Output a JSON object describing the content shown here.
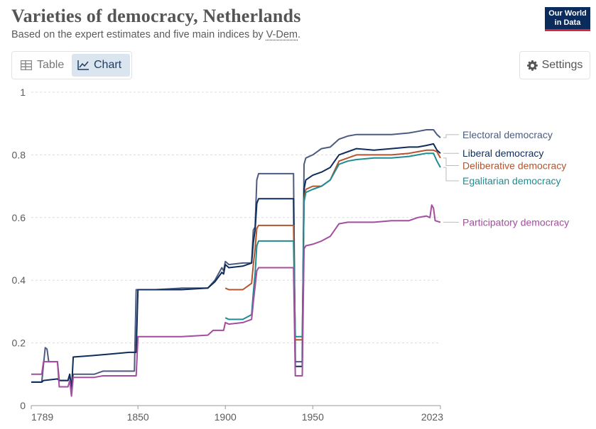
{
  "header": {
    "title": "Varieties of democracy, Netherlands",
    "subtitle_prefix": "Based on the expert estimates and five main indices by ",
    "subtitle_link": "V-Dem",
    "subtitle_suffix": "."
  },
  "logo": {
    "line1": "Our World",
    "line2": "in Data",
    "bg": "#0a2b5c",
    "accent": "#d0283a"
  },
  "tabs": [
    {
      "label": "Table",
      "icon": "table-icon",
      "active": false
    },
    {
      "label": "Chart",
      "icon": "line-chart-icon",
      "active": true
    }
  ],
  "settings": {
    "label": "Settings",
    "icon": "gear-icon"
  },
  "chart_data": {
    "type": "line",
    "title": "Varieties of democracy, Netherlands",
    "xlim": [
      1789,
      2023
    ],
    "ylim": [
      0,
      1
    ],
    "xticks": [
      1789,
      1850,
      1900,
      1950,
      2023
    ],
    "yticks": [
      0,
      0.2,
      0.4,
      0.6,
      0.8,
      1
    ],
    "grid": "horizontal dashed",
    "legend": "right, labels at line ends",
    "series": [
      {
        "name": "Electoral democracy",
        "color": "#4c5b80",
        "points": [
          [
            1789,
            0.075
          ],
          [
            1795,
            0.075
          ],
          [
            1796,
            0.13
          ],
          [
            1797,
            0.185
          ],
          [
            1798,
            0.18
          ],
          [
            1799,
            0.14
          ],
          [
            1804,
            0.14
          ],
          [
            1805,
            0.08
          ],
          [
            1810,
            0.08
          ],
          [
            1811,
            0.1
          ],
          [
            1812,
            0.06
          ],
          [
            1813,
            0.1
          ],
          [
            1825,
            0.1
          ],
          [
            1830,
            0.11
          ],
          [
            1848,
            0.11
          ],
          [
            1849,
            0.37
          ],
          [
            1860,
            0.37
          ],
          [
            1875,
            0.375
          ],
          [
            1890,
            0.375
          ],
          [
            1894,
            0.4
          ],
          [
            1898,
            0.44
          ],
          [
            1899,
            0.43
          ],
          [
            1900,
            0.46
          ],
          [
            1902,
            0.45
          ],
          [
            1910,
            0.455
          ],
          [
            1915,
            0.455
          ],
          [
            1916,
            0.56
          ],
          [
            1917,
            0.57
          ],
          [
            1918,
            0.72
          ],
          [
            1919,
            0.74
          ],
          [
            1939,
            0.74
          ],
          [
            1940,
            0.14
          ],
          [
            1944,
            0.14
          ],
          [
            1945,
            0.77
          ],
          [
            1946,
            0.79
          ],
          [
            1950,
            0.8
          ],
          [
            1955,
            0.82
          ],
          [
            1960,
            0.825
          ],
          [
            1965,
            0.85
          ],
          [
            1970,
            0.86
          ],
          [
            1975,
            0.865
          ],
          [
            1985,
            0.865
          ],
          [
            1995,
            0.865
          ],
          [
            2005,
            0.87
          ],
          [
            2010,
            0.875
          ],
          [
            2015,
            0.88
          ],
          [
            2019,
            0.88
          ],
          [
            2021,
            0.865
          ],
          [
            2023,
            0.855
          ]
        ]
      },
      {
        "name": "Liberal democracy",
        "color": "#0e2d5a",
        "points": [
          [
            1789,
            0.075
          ],
          [
            1795,
            0.075
          ],
          [
            1796,
            0.08
          ],
          [
            1804,
            0.085
          ],
          [
            1805,
            0.08
          ],
          [
            1810,
            0.08
          ],
          [
            1811,
            0.1
          ],
          [
            1812,
            0.045
          ],
          [
            1813,
            0.155
          ],
          [
            1825,
            0.16
          ],
          [
            1835,
            0.165
          ],
          [
            1845,
            0.17
          ],
          [
            1849,
            0.17
          ],
          [
            1850,
            0.37
          ],
          [
            1860,
            0.37
          ],
          [
            1875,
            0.37
          ],
          [
            1890,
            0.375
          ],
          [
            1894,
            0.395
          ],
          [
            1898,
            0.425
          ],
          [
            1899,
            0.42
          ],
          [
            1900,
            0.45
          ],
          [
            1902,
            0.44
          ],
          [
            1910,
            0.445
          ],
          [
            1915,
            0.455
          ],
          [
            1916,
            0.52
          ],
          [
            1917,
            0.56
          ],
          [
            1918,
            0.645
          ],
          [
            1919,
            0.66
          ],
          [
            1939,
            0.66
          ],
          [
            1940,
            0.125
          ],
          [
            1944,
            0.125
          ],
          [
            1945,
            0.69
          ],
          [
            1946,
            0.72
          ],
          [
            1950,
            0.735
          ],
          [
            1955,
            0.745
          ],
          [
            1960,
            0.76
          ],
          [
            1965,
            0.8
          ],
          [
            1970,
            0.81
          ],
          [
            1975,
            0.82
          ],
          [
            1985,
            0.815
          ],
          [
            1995,
            0.82
          ],
          [
            2005,
            0.825
          ],
          [
            2010,
            0.825
          ],
          [
            2015,
            0.83
          ],
          [
            2019,
            0.835
          ],
          [
            2021,
            0.815
          ],
          [
            2023,
            0.805
          ]
        ]
      },
      {
        "name": "Deliberative democracy",
        "color": "#b4542c",
        "points": [
          [
            1900,
            0.375
          ],
          [
            1902,
            0.37
          ],
          [
            1910,
            0.37
          ],
          [
            1915,
            0.39
          ],
          [
            1916,
            0.45
          ],
          [
            1917,
            0.5
          ],
          [
            1918,
            0.565
          ],
          [
            1919,
            0.575
          ],
          [
            1939,
            0.575
          ],
          [
            1940,
            0.21
          ],
          [
            1944,
            0.21
          ],
          [
            1945,
            0.66
          ],
          [
            1946,
            0.69
          ],
          [
            1950,
            0.7
          ],
          [
            1955,
            0.7
          ],
          [
            1960,
            0.72
          ],
          [
            1965,
            0.78
          ],
          [
            1970,
            0.79
          ],
          [
            1975,
            0.8
          ],
          [
            1985,
            0.8
          ],
          [
            1995,
            0.8
          ],
          [
            2005,
            0.805
          ],
          [
            2010,
            0.81
          ],
          [
            2015,
            0.815
          ],
          [
            2019,
            0.815
          ],
          [
            2021,
            0.81
          ],
          [
            2023,
            0.79
          ]
        ]
      },
      {
        "name": "Egalitarian democracy",
        "color": "#1d8c93",
        "points": [
          [
            1900,
            0.28
          ],
          [
            1902,
            0.275
          ],
          [
            1910,
            0.275
          ],
          [
            1915,
            0.29
          ],
          [
            1916,
            0.36
          ],
          [
            1917,
            0.42
          ],
          [
            1918,
            0.51
          ],
          [
            1919,
            0.525
          ],
          [
            1939,
            0.525
          ],
          [
            1940,
            0.22
          ],
          [
            1944,
            0.22
          ],
          [
            1945,
            0.65
          ],
          [
            1946,
            0.68
          ],
          [
            1950,
            0.69
          ],
          [
            1955,
            0.7
          ],
          [
            1960,
            0.72
          ],
          [
            1965,
            0.77
          ],
          [
            1970,
            0.78
          ],
          [
            1975,
            0.785
          ],
          [
            1985,
            0.79
          ],
          [
            1995,
            0.79
          ],
          [
            2005,
            0.795
          ],
          [
            2010,
            0.8
          ],
          [
            2015,
            0.805
          ],
          [
            2019,
            0.805
          ],
          [
            2021,
            0.78
          ],
          [
            2023,
            0.76
          ]
        ]
      },
      {
        "name": "Participatory democracy",
        "color": "#a54d9e",
        "points": [
          [
            1789,
            0.1
          ],
          [
            1795,
            0.1
          ],
          [
            1796,
            0.14
          ],
          [
            1804,
            0.14
          ],
          [
            1805,
            0.06
          ],
          [
            1810,
            0.06
          ],
          [
            1811,
            0.08
          ],
          [
            1812,
            0.03
          ],
          [
            1813,
            0.09
          ],
          [
            1825,
            0.09
          ],
          [
            1830,
            0.095
          ],
          [
            1849,
            0.095
          ],
          [
            1850,
            0.22
          ],
          [
            1860,
            0.22
          ],
          [
            1875,
            0.22
          ],
          [
            1890,
            0.225
          ],
          [
            1893,
            0.24
          ],
          [
            1899,
            0.24
          ],
          [
            1900,
            0.265
          ],
          [
            1902,
            0.26
          ],
          [
            1910,
            0.265
          ],
          [
            1915,
            0.275
          ],
          [
            1916,
            0.33
          ],
          [
            1917,
            0.38
          ],
          [
            1918,
            0.43
          ],
          [
            1919,
            0.44
          ],
          [
            1939,
            0.44
          ],
          [
            1940,
            0.095
          ],
          [
            1944,
            0.095
          ],
          [
            1945,
            0.5
          ],
          [
            1946,
            0.51
          ],
          [
            1950,
            0.515
          ],
          [
            1955,
            0.525
          ],
          [
            1960,
            0.54
          ],
          [
            1965,
            0.58
          ],
          [
            1970,
            0.585
          ],
          [
            1975,
            0.585
          ],
          [
            1985,
            0.585
          ],
          [
            1995,
            0.59
          ],
          [
            2005,
            0.59
          ],
          [
            2010,
            0.6
          ],
          [
            2015,
            0.605
          ],
          [
            2017,
            0.6
          ],
          [
            2018,
            0.64
          ],
          [
            2019,
            0.63
          ],
          [
            2020,
            0.59
          ],
          [
            2023,
            0.585
          ]
        ]
      }
    ]
  }
}
